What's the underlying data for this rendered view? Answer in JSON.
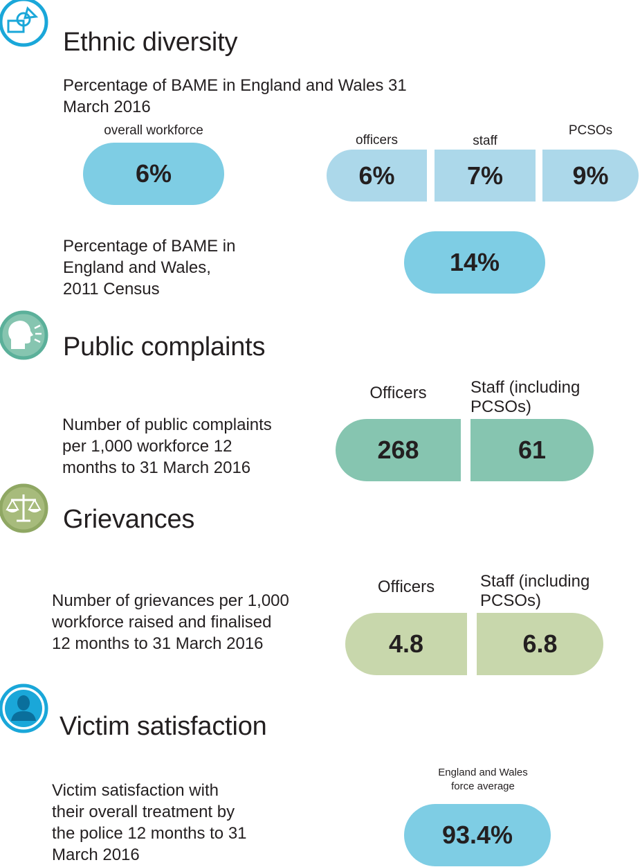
{
  "ethnic": {
    "heading": "Ethnic diversity",
    "desc_line1": "Percentage of BAME in England and Wales 31",
    "desc_line2": "March 2016",
    "overall_label": "overall workforce",
    "overall_value": "6%",
    "officers_label": "officers",
    "officers_value": "6%",
    "staff_label": "staff",
    "staff_value": "7%",
    "pcsos_label": "PCSOs",
    "pcsos_value": "9%",
    "census_line1": "Percentage of BAME in",
    "census_line2": "England and Wales,",
    "census_line3": "2011 Census",
    "census_value": "14%",
    "icon": "diversity-shapes-icon",
    "color": "#7ecde4"
  },
  "complaints": {
    "heading": "Public complaints",
    "desc_line1": "Number of public complaints",
    "desc_line2": "per 1,000 workforce 12",
    "desc_line3": "months to 31 March 2016",
    "officers_label": "Officers",
    "officers_value": "268",
    "staff_label_line1": "Staff (including",
    "staff_label_line2": "PCSOs)",
    "staff_value": "61",
    "icon": "speaking-head-icon",
    "color": "#86c5b0"
  },
  "grievances": {
    "heading": "Grievances",
    "desc_line1": "Number of grievances per 1,000",
    "desc_line2": "workforce raised and finalised",
    "desc_line3": "12 months to 31 March 2016",
    "officers_label": "Officers",
    "officers_value": "4.8",
    "staff_label_line1": "Staff (including",
    "staff_label_line2": "PCSOs)",
    "staff_value": "6.8",
    "icon": "scales-icon",
    "color": "#c8d7ac"
  },
  "victim": {
    "heading": "Victim satisfaction",
    "desc_line1": "Victim satisfaction with",
    "desc_line2": "their overall treatment by",
    "desc_line3": "the police 12 months to 31",
    "desc_line4": "March 2016",
    "avg_label_line1": "England and Wales",
    "avg_label_line2": "force average",
    "avg_value": "93.4%",
    "icon": "person-icon",
    "color": "#7ecde4"
  }
}
